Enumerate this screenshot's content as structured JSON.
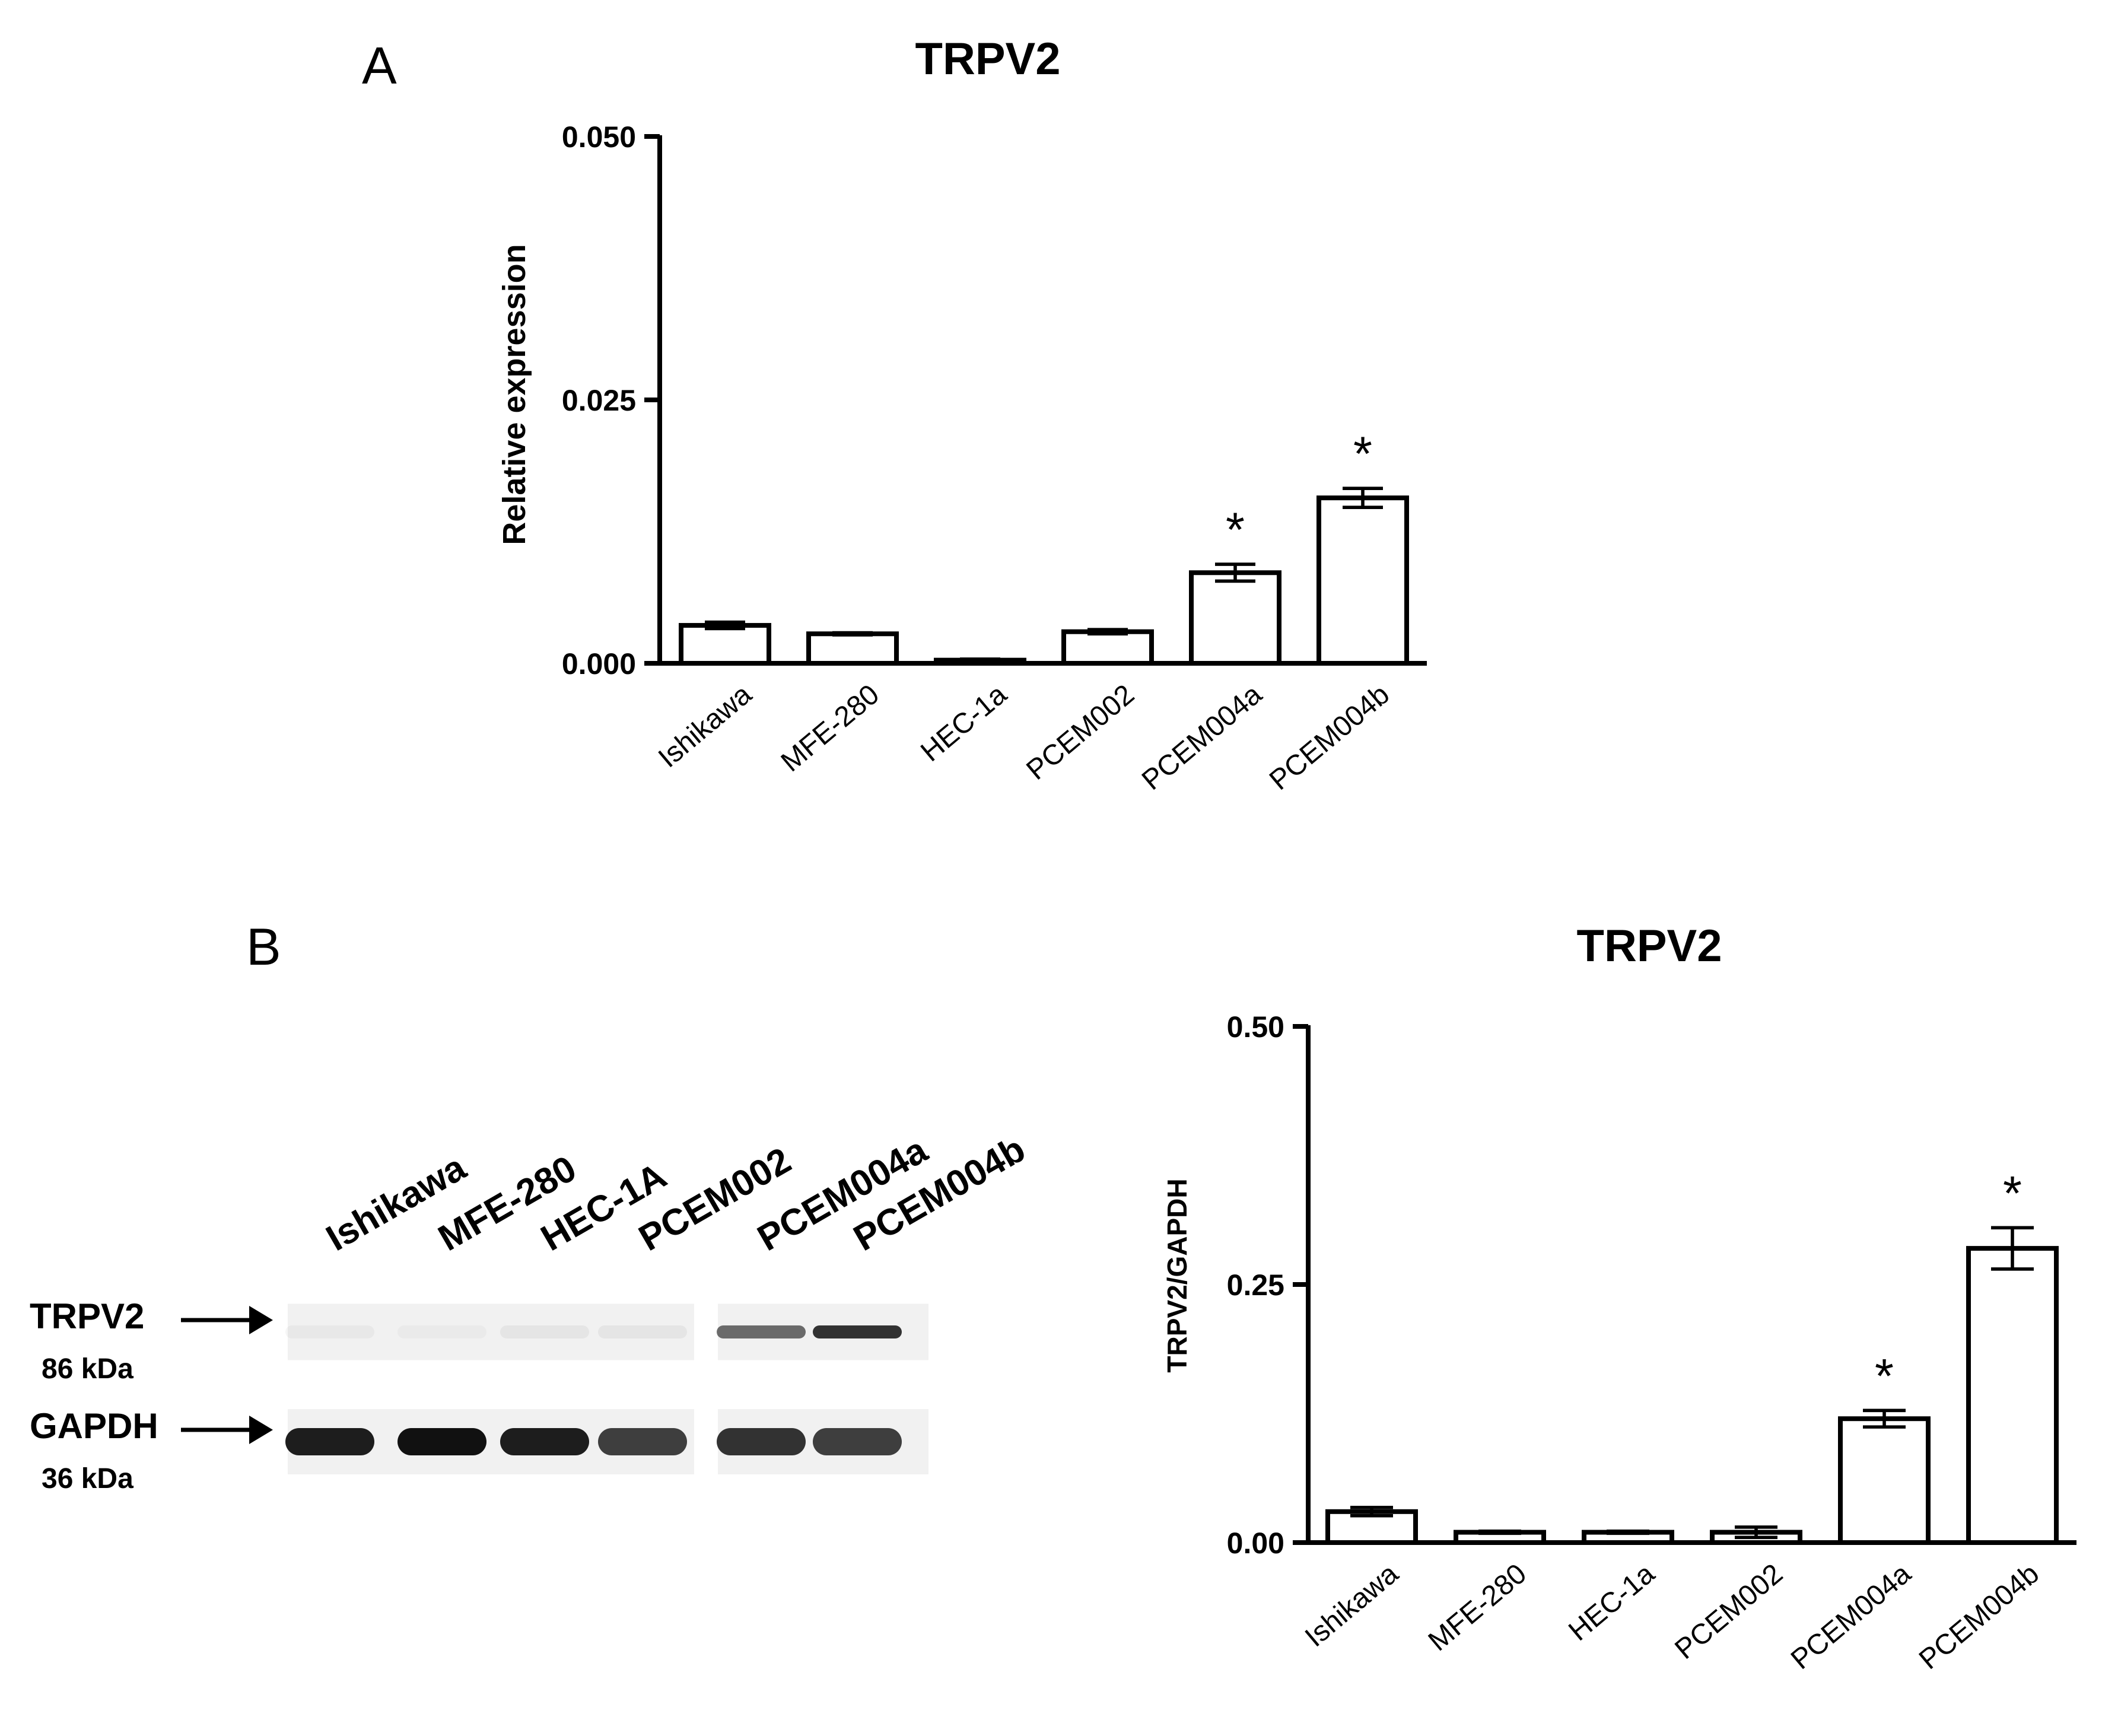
{
  "panels": {
    "a_letter": "A",
    "b_letter": "B"
  },
  "chart_data": [
    {
      "type": "bar",
      "panel": "A",
      "title": "TRPV2",
      "ylabel": "Relative expression",
      "xlabel": "",
      "ylim": [
        0,
        0.05
      ],
      "yticks": [
        "0.000",
        "0.025",
        "0.050"
      ],
      "ytick_values": [
        0,
        0.025,
        0.05
      ],
      "categories": [
        "Ishikawa",
        "MFE-280",
        "HEC-1a",
        "PCEM002",
        "PCEM004a",
        "PCEM004b"
      ],
      "values": [
        0.0036,
        0.0028,
        0.0003,
        0.003,
        0.0086,
        0.0157
      ],
      "errors": [
        0.0003,
        0.0001,
        0.0001,
        0.0002,
        0.0008,
        0.0009
      ],
      "significance": [
        "",
        "",
        "",
        "",
        "*",
        "*"
      ],
      "grid": false,
      "legend": "none"
    },
    {
      "type": "bar",
      "panel": "B",
      "title": "TRPV2",
      "ylabel": "TRPV2/GAPDH",
      "xlabel": "",
      "ylim": [
        0,
        0.5
      ],
      "yticks": [
        "0.00",
        "0.25",
        "0.50"
      ],
      "ytick_values": [
        0,
        0.25,
        0.5
      ],
      "categories": [
        "Ishikawa",
        "MFE-280",
        "HEC-1a",
        "PCEM002",
        "PCEM004a",
        "PCEM004b"
      ],
      "values": [
        0.03,
        0.01,
        0.01,
        0.01,
        0.12,
        0.285
      ],
      "errors": [
        0.004,
        0.001,
        0.001,
        0.005,
        0.008,
        0.02
      ],
      "significance": [
        "",
        "",
        "",
        "",
        "*",
        "*"
      ],
      "grid": false,
      "legend": "none"
    }
  ],
  "western_blot": {
    "lane_labels": [
      "Ishikawa",
      "MFE-280",
      "HEC-1A",
      "PCEM002",
      "PCEM004a",
      "PCEM004b"
    ],
    "rows": [
      {
        "protein": "TRPV2",
        "size": "86 kDa",
        "intensities": [
          0.04,
          0.03,
          0.05,
          0.05,
          0.6,
          0.85
        ]
      },
      {
        "protein": "GAPDH",
        "size": "36 kDa",
        "intensities": [
          0.95,
          1.0,
          0.95,
          0.8,
          0.85,
          0.8
        ]
      }
    ],
    "colors": {
      "band": "#111111",
      "background": "#f1f1f1"
    }
  }
}
